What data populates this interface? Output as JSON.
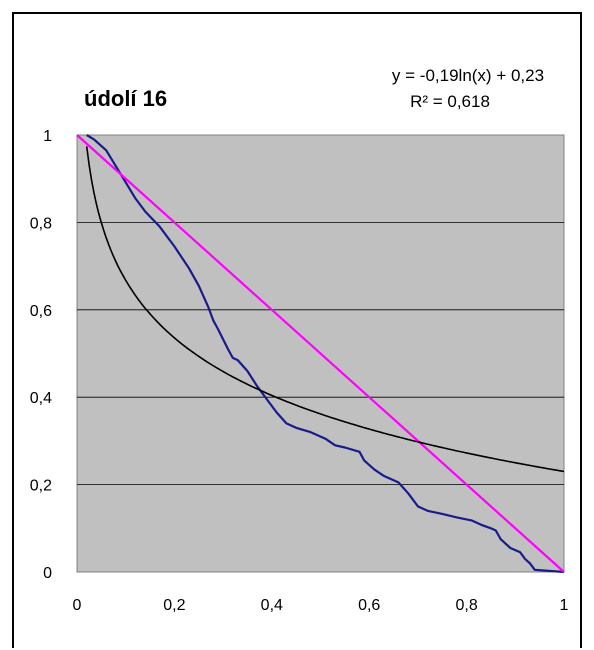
{
  "chart_data": {
    "type": "line",
    "title": "údolí  16",
    "trendline": {
      "equation": "y = -0,19ln(x) + 0,23",
      "r_squared": "R² = 0,618"
    },
    "xlim": [
      0,
      1
    ],
    "ylim": [
      0,
      1
    ],
    "x_ticks": [
      "0",
      "0,2",
      "0,4",
      "0,6",
      "0,8",
      "1"
    ],
    "y_ticks": [
      "0",
      "0,2",
      "0,4",
      "0,6",
      "0,8",
      "1"
    ],
    "grid": true,
    "plot_background": "#c0c0c0",
    "series": [
      {
        "color": "#1a1a8c",
        "x": [
          0.02,
          0.035,
          0.06,
          0.09,
          0.12,
          0.14,
          0.17,
          0.2,
          0.23,
          0.25,
          0.27,
          0.28,
          0.29,
          0.31,
          0.32,
          0.33,
          0.35,
          0.37,
          0.39,
          0.41,
          0.43,
          0.45,
          0.48,
          0.51,
          0.53,
          0.55,
          0.58,
          0.59,
          0.61,
          0.63,
          0.66,
          0.68,
          0.7,
          0.72,
          0.75,
          0.78,
          0.81,
          0.83,
          0.85,
          0.86,
          0.87,
          0.89,
          0.91,
          0.92,
          0.93,
          0.94,
          1.0
        ],
        "y": [
          1.0,
          0.99,
          0.965,
          0.91,
          0.855,
          0.825,
          0.79,
          0.745,
          0.695,
          0.655,
          0.605,
          0.575,
          0.555,
          0.51,
          0.49,
          0.485,
          0.46,
          0.425,
          0.395,
          0.365,
          0.34,
          0.33,
          0.32,
          0.305,
          0.29,
          0.285,
          0.275,
          0.255,
          0.235,
          0.22,
          0.205,
          0.18,
          0.15,
          0.14,
          0.133,
          0.125,
          0.118,
          0.108,
          0.1,
          0.095,
          0.075,
          0.055,
          0.045,
          0.03,
          0.02,
          0.005,
          0.0
        ]
      },
      {
        "color": "#ff00ff",
        "x": [
          0,
          1
        ],
        "y": [
          1,
          0
        ]
      },
      {
        "color": "#000000",
        "function": "trendline",
        "coefficients": {
          "a": -0.19,
          "b": 0.23
        },
        "x_range": [
          0.01,
          1
        ]
      }
    ]
  }
}
